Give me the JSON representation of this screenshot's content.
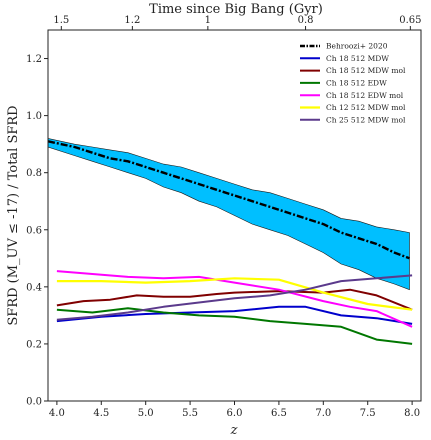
{
  "chart_data": {
    "type": "line",
    "xlabel": "z",
    "ylabel": "SFRD (M_UV ≤ -17) / Total SFRD",
    "xlim": [
      3.9,
      8.1
    ],
    "ylim": [
      0.0,
      1.3
    ],
    "x_ticks": [
      {
        "value": 4.0,
        "label": "4.0"
      },
      {
        "value": 4.5,
        "label": "4.5"
      },
      {
        "value": 5.0,
        "label": "5.0"
      },
      {
        "value": 5.5,
        "label": "5.5"
      },
      {
        "value": 6.0,
        "label": "6.0"
      },
      {
        "value": 6.5,
        "label": "6.5"
      },
      {
        "value": 7.0,
        "label": "7.0"
      },
      {
        "value": 7.5,
        "label": "7.5"
      },
      {
        "value": 8.0,
        "label": "8.0"
      }
    ],
    "y_ticks": [
      {
        "value": 0.0,
        "label": "0.0"
      },
      {
        "value": 0.2,
        "label": "0.2"
      },
      {
        "value": 0.4,
        "label": "0.4"
      },
      {
        "value": 0.6,
        "label": "0.6"
      },
      {
        "value": 0.8,
        "label": "0.8"
      },
      {
        "value": 1.0,
        "label": "1.0"
      },
      {
        "value": 1.2,
        "label": "1.2"
      }
    ],
    "top_axis": {
      "label": "Time since Big Bang (Gyr)",
      "ticks": [
        {
          "z": 4.05,
          "label": "1.5"
        },
        {
          "z": 4.85,
          "label": "1.2"
        },
        {
          "z": 5.7,
          "label": "1"
        },
        {
          "z": 6.8,
          "label": "0.8"
        },
        {
          "z": 7.98,
          "label": "0.65"
        }
      ]
    },
    "band": {
      "color": "#00bfff",
      "x": [
        3.9,
        4.2,
        4.4,
        4.6,
        4.8,
        5.0,
        5.2,
        5.4,
        5.6,
        5.8,
        6.0,
        6.2,
        6.4,
        6.6,
        6.8,
        7.0,
        7.2,
        7.4,
        7.6,
        7.8,
        7.97
      ],
      "upper": [
        0.92,
        0.9,
        0.89,
        0.88,
        0.87,
        0.85,
        0.83,
        0.82,
        0.8,
        0.78,
        0.76,
        0.74,
        0.73,
        0.71,
        0.69,
        0.67,
        0.64,
        0.63,
        0.61,
        0.6,
        0.59
      ],
      "lower": [
        0.89,
        0.86,
        0.84,
        0.82,
        0.8,
        0.78,
        0.75,
        0.73,
        0.7,
        0.68,
        0.65,
        0.62,
        0.6,
        0.58,
        0.55,
        0.52,
        0.48,
        0.46,
        0.43,
        0.41,
        0.39
      ]
    },
    "series": [
      {
        "name": "Behroozi+ 2020",
        "color": "#000000",
        "dash": "7 2 2 2",
        "width": 2.4,
        "x": [
          3.9,
          4.2,
          4.4,
          4.6,
          4.8,
          5.0,
          5.2,
          5.4,
          5.6,
          5.8,
          6.0,
          6.2,
          6.4,
          6.6,
          6.8,
          7.0,
          7.2,
          7.4,
          7.6,
          7.8,
          7.97
        ],
        "y": [
          0.91,
          0.89,
          0.87,
          0.85,
          0.84,
          0.82,
          0.8,
          0.78,
          0.76,
          0.74,
          0.72,
          0.7,
          0.68,
          0.66,
          0.64,
          0.62,
          0.59,
          0.57,
          0.55,
          0.52,
          0.5
        ]
      },
      {
        "name": "Ch 18 512 MDW",
        "color": "#0000cc",
        "width": 2,
        "x": [
          4.0,
          4.5,
          5.0,
          5.5,
          6.0,
          6.5,
          6.8,
          7.2,
          7.6,
          8.0
        ],
        "y": [
          0.28,
          0.295,
          0.305,
          0.31,
          0.315,
          0.33,
          0.33,
          0.3,
          0.29,
          0.27
        ]
      },
      {
        "name": "Ch 18 512 MDW mol",
        "color": "#800000",
        "width": 2,
        "x": [
          4.0,
          4.3,
          4.6,
          4.9,
          5.2,
          5.5,
          5.8,
          6.0,
          6.5,
          7.0,
          7.3,
          7.6,
          8.0
        ],
        "y": [
          0.335,
          0.35,
          0.355,
          0.37,
          0.365,
          0.365,
          0.375,
          0.38,
          0.385,
          0.38,
          0.39,
          0.37,
          0.32
        ]
      },
      {
        "name": "Ch 18 512 EDW",
        "color": "#007700",
        "width": 2,
        "x": [
          4.0,
          4.4,
          4.8,
          5.2,
          5.6,
          6.0,
          6.4,
          6.8,
          7.2,
          7.6,
          8.0
        ],
        "y": [
          0.32,
          0.31,
          0.325,
          0.31,
          0.3,
          0.295,
          0.28,
          0.27,
          0.26,
          0.215,
          0.2
        ]
      },
      {
        "name": "Ch 18 512 EDW mol",
        "color": "#ff00ff",
        "width": 2,
        "x": [
          4.0,
          4.4,
          4.8,
          5.2,
          5.6,
          6.0,
          6.5,
          7.0,
          7.3,
          7.6,
          8.0
        ],
        "y": [
          0.455,
          0.445,
          0.435,
          0.43,
          0.435,
          0.415,
          0.39,
          0.35,
          0.33,
          0.315,
          0.26
        ]
      },
      {
        "name": "Ch 12 512 MDW mol",
        "color": "#ffff00",
        "width": 2.2,
        "x": [
          4.0,
          4.5,
          5.0,
          5.5,
          6.0,
          6.5,
          7.0,
          7.5,
          8.0
        ],
        "y": [
          0.42,
          0.42,
          0.415,
          0.42,
          0.43,
          0.425,
          0.38,
          0.34,
          0.32
        ]
      },
      {
        "name": "Ch 25 512 MDW mol",
        "color": "#5b3a8c",
        "width": 2,
        "x": [
          4.0,
          4.4,
          4.8,
          5.2,
          5.6,
          6.0,
          6.4,
          6.8,
          7.2,
          7.6,
          8.0
        ],
        "y": [
          0.285,
          0.295,
          0.31,
          0.33,
          0.345,
          0.36,
          0.37,
          0.39,
          0.42,
          0.43,
          0.44
        ]
      }
    ],
    "legend": {
      "position": "upper-right"
    }
  }
}
